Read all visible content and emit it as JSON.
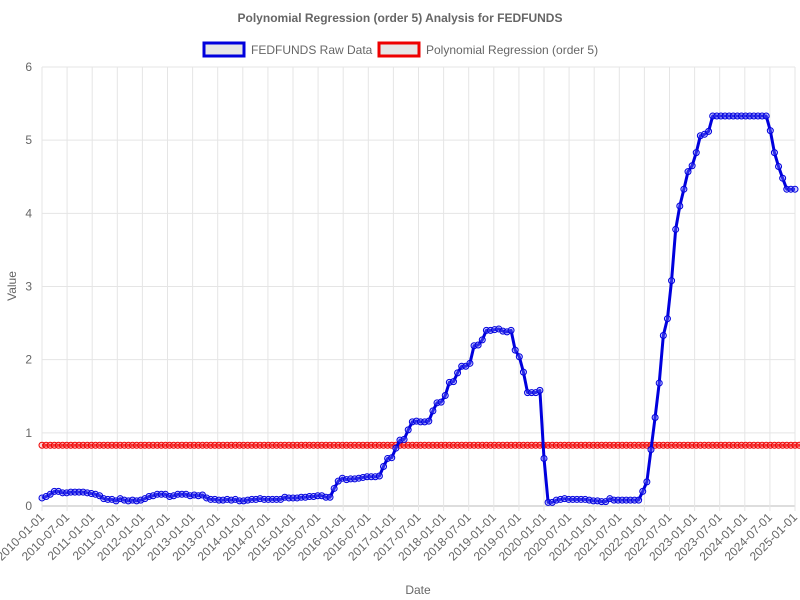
{
  "chart_data": {
    "type": "line",
    "title": "Polynomial Regression (order 5) Analysis for FEDFUNDS",
    "xlabel": "Date",
    "ylabel": "Value",
    "ylim": [
      0,
      6
    ],
    "y_ticks": [
      "0",
      "1",
      "2",
      "3",
      "4",
      "5",
      "6"
    ],
    "x_tick_labels": [
      "2010-01-01",
      "2010-07-01",
      "2011-01-01",
      "2011-07-01",
      "2012-01-01",
      "2012-07-01",
      "2013-01-01",
      "2013-07-01",
      "2014-01-01",
      "2014-07-01",
      "2015-01-01",
      "2015-07-01",
      "2016-01-01",
      "2016-07-01",
      "2017-01-01",
      "2017-07-01",
      "2018-01-01",
      "2018-07-01",
      "2019-01-01",
      "2019-07-01",
      "2020-01-01",
      "2020-07-01",
      "2021-01-01",
      "2021-07-01",
      "2022-01-01",
      "2022-07-01",
      "2023-01-01",
      "2023-07-01",
      "2024-01-01",
      "2024-07-01",
      "2025-01-01"
    ],
    "grid": true,
    "legend_position": "top",
    "series": [
      {
        "name": "FEDFUNDS Raw Data",
        "color": "#0000dd",
        "values": [
          0.11,
          0.13,
          0.16,
          0.2,
          0.2,
          0.18,
          0.18,
          0.19,
          0.19,
          0.19,
          0.19,
          0.18,
          0.17,
          0.16,
          0.14,
          0.1,
          0.09,
          0.09,
          0.07,
          0.1,
          0.08,
          0.07,
          0.08,
          0.07,
          0.08,
          0.1,
          0.13,
          0.14,
          0.16,
          0.16,
          0.16,
          0.13,
          0.14,
          0.16,
          0.16,
          0.16,
          0.14,
          0.15,
          0.14,
          0.15,
          0.11,
          0.09,
          0.09,
          0.08,
          0.08,
          0.09,
          0.08,
          0.09,
          0.07,
          0.07,
          0.08,
          0.09,
          0.09,
          0.1,
          0.09,
          0.09,
          0.09,
          0.09,
          0.09,
          0.12,
          0.11,
          0.11,
          0.11,
          0.12,
          0.12,
          0.13,
          0.13,
          0.14,
          0.14,
          0.12,
          0.12,
          0.24,
          0.34,
          0.38,
          0.36,
          0.37,
          0.37,
          0.38,
          0.39,
          0.4,
          0.4,
          0.4,
          0.41,
          0.54,
          0.65,
          0.66,
          0.79,
          0.9,
          0.91,
          1.04,
          1.15,
          1.16,
          1.15,
          1.15,
          1.16,
          1.3,
          1.41,
          1.42,
          1.51,
          1.69,
          1.7,
          1.82,
          1.91,
          1.91,
          1.95,
          2.19,
          2.2,
          2.27,
          2.4,
          2.4,
          2.41,
          2.42,
          2.39,
          2.38,
          2.4,
          2.13,
          2.04,
          1.83,
          1.55,
          1.55,
          1.55,
          1.58,
          0.65,
          0.05,
          0.05,
          0.08,
          0.09,
          0.1,
          0.09,
          0.09,
          0.09,
          0.09,
          0.09,
          0.08,
          0.07,
          0.07,
          0.06,
          0.06,
          0.1,
          0.08,
          0.08,
          0.08,
          0.08,
          0.08,
          0.08,
          0.08,
          0.2,
          0.33,
          0.77,
          1.21,
          1.68,
          2.33,
          2.56,
          3.08,
          3.78,
          4.1,
          4.33,
          4.57,
          4.65,
          4.83,
          5.06,
          5.08,
          5.12,
          5.33,
          5.33,
          5.33,
          5.33,
          5.33,
          5.33,
          5.33,
          5.33,
          5.33,
          5.33,
          5.33,
          5.33,
          5.33,
          5.33,
          5.13,
          4.83,
          4.64,
          4.48,
          4.33,
          4.33,
          4.33
        ]
      },
      {
        "name": "Polynomial Regression (order 5)",
        "color": "#ee0000",
        "values": [
          0.83,
          0.83,
          0.83,
          0.83,
          0.83,
          0.83,
          0.83,
          0.83,
          0.83,
          0.83,
          0.83,
          0.83,
          0.83,
          0.83,
          0.83,
          0.83,
          0.83,
          0.83,
          0.83,
          0.83,
          0.83,
          0.83,
          0.83,
          0.83,
          0.83,
          0.83,
          0.83,
          0.83,
          0.83,
          0.83,
          0.83,
          0.83,
          0.83,
          0.83,
          0.83,
          0.83,
          0.83,
          0.83,
          0.83,
          0.83,
          0.83,
          0.83,
          0.83,
          0.83,
          0.83,
          0.83,
          0.83,
          0.83,
          0.83,
          0.83,
          0.83,
          0.83,
          0.83,
          0.83,
          0.83,
          0.83,
          0.83,
          0.83,
          0.83,
          0.83,
          0.83,
          0.83,
          0.83,
          0.83,
          0.83,
          0.83,
          0.83,
          0.83,
          0.83,
          0.83,
          0.83,
          0.83,
          0.83,
          0.83,
          0.83,
          0.83,
          0.83,
          0.83,
          0.83,
          0.83,
          0.83,
          0.83,
          0.83,
          0.83,
          0.83,
          0.83,
          0.83,
          0.83,
          0.83,
          0.83,
          0.83,
          0.83,
          0.83,
          0.83,
          0.83,
          0.83,
          0.83,
          0.83,
          0.83,
          0.83,
          0.83,
          0.83,
          0.83,
          0.83,
          0.83,
          0.83,
          0.83,
          0.83,
          0.83,
          0.83,
          0.83,
          0.83,
          0.83,
          0.83,
          0.83,
          0.83,
          0.83,
          0.83,
          0.83,
          0.83,
          0.83,
          0.83,
          0.83,
          0.83,
          0.83,
          0.83,
          0.83,
          0.83,
          0.83,
          0.83,
          0.83,
          0.83,
          0.83,
          0.83,
          0.83,
          0.83,
          0.83,
          0.83,
          0.83,
          0.83,
          0.83,
          0.83,
          0.83,
          0.83,
          0.83,
          0.83,
          0.83,
          0.83,
          0.83,
          0.83,
          0.83,
          0.83,
          0.83,
          0.83,
          0.83,
          0.83,
          0.83,
          0.83,
          0.83,
          0.83,
          0.83,
          0.83,
          0.83,
          0.83,
          0.83,
          0.83,
          0.83,
          0.83,
          0.83,
          0.83,
          0.83,
          0.83,
          0.83,
          0.83,
          0.83,
          0.83,
          0.83,
          0.83,
          0.83,
          0.83,
          0.83,
          0.83,
          0.83,
          0.83,
          0.83,
          0.83,
          0.83,
          0.83,
          0.83
        ]
      }
    ]
  }
}
